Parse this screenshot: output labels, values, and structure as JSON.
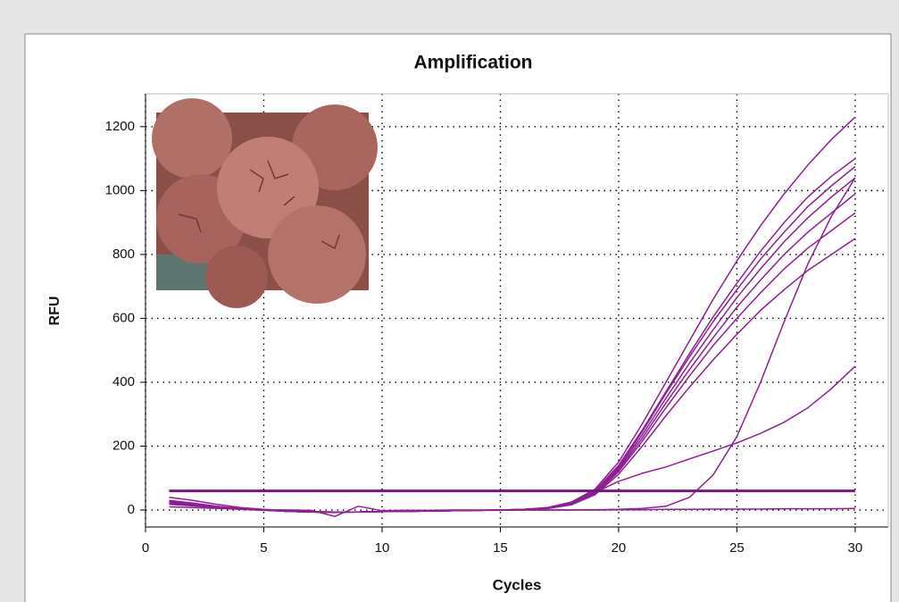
{
  "chart_data": {
    "type": "line",
    "title": "Amplification",
    "x_label": "Cycles",
    "y_label": "RFU",
    "x": [
      1,
      2,
      3,
      4,
      5,
      6,
      7,
      8,
      9,
      10,
      11,
      12,
      13,
      14,
      15,
      16,
      17,
      18,
      19,
      20,
      21,
      22,
      23,
      24,
      25,
      26,
      27,
      28,
      29,
      30
    ],
    "xlim": [
      0,
      31.4
    ],
    "ylim": [
      -53,
      1303
    ],
    "xticks": [
      0,
      5,
      10,
      15,
      20,
      25,
      30
    ],
    "yticks": [
      0,
      200,
      400,
      600,
      800,
      1000,
      1200
    ],
    "grid": true,
    "series": [
      {
        "color": "#8e1f94",
        "line_width": 1.5,
        "values": [
          25,
          18,
          10,
          4,
          0,
          -4,
          -6,
          -7,
          -6,
          -5,
          -4,
          -3,
          -2,
          -1,
          0,
          2,
          8,
          25,
          65,
          150,
          270,
          400,
          530,
          660,
          780,
          890,
          990,
          1080,
          1160,
          1230
        ]
      },
      {
        "color": "#8e1f94",
        "line_width": 1.5,
        "values": [
          30,
          22,
          12,
          5,
          1,
          -3,
          -5,
          -6,
          -6,
          -5,
          -4,
          -3,
          -2,
          -1,
          0,
          2,
          7,
          22,
          60,
          140,
          250,
          370,
          490,
          605,
          710,
          810,
          900,
          980,
          1045,
          1100
        ]
      },
      {
        "color": "#8e1f94",
        "line_width": 1.5,
        "values": [
          22,
          16,
          9,
          3,
          0,
          -4,
          -6,
          -7,
          -6,
          -5,
          -4,
          -3,
          -2,
          -1,
          0,
          2,
          6,
          20,
          58,
          135,
          245,
          365,
          480,
          590,
          690,
          785,
          870,
          950,
          1015,
          1075
        ]
      },
      {
        "color": "#8e1f94",
        "line_width": 1.5,
        "values": [
          40,
          30,
          18,
          8,
          2,
          -3,
          -5,
          -6,
          -6,
          -5,
          -4,
          -3,
          -2,
          -1,
          0,
          2,
          6,
          20,
          55,
          130,
          235,
          350,
          460,
          565,
          665,
          755,
          840,
          915,
          980,
          1040
        ]
      },
      {
        "color": "#8e1f94",
        "line_width": 1.5,
        "values": [
          20,
          14,
          8,
          3,
          0,
          -4,
          -6,
          -7,
          -6,
          -5,
          -4,
          -3,
          -2,
          -1,
          0,
          1,
          5,
          18,
          52,
          125,
          225,
          335,
          440,
          540,
          635,
          720,
          800,
          870,
          930,
          990
        ]
      },
      {
        "color": "#8e1f94",
        "line_width": 1.5,
        "values": [
          28,
          20,
          11,
          4,
          0,
          -4,
          -6,
          -7,
          -6,
          -5,
          -4,
          -3,
          -2,
          -1,
          0,
          1,
          5,
          17,
          50,
          120,
          215,
          320,
          420,
          515,
          600,
          680,
          755,
          820,
          875,
          930
        ]
      },
      {
        "color": "#8e1f94",
        "line_width": 1.5,
        "values": [
          18,
          13,
          7,
          2,
          -1,
          -4,
          -6,
          -7,
          -6,
          -5,
          -4,
          -3,
          -2,
          -1,
          0,
          1,
          5,
          16,
          48,
          112,
          200,
          295,
          385,
          470,
          550,
          625,
          690,
          750,
          800,
          850
        ]
      },
      {
        "color": "#8e1f94",
        "line_width": 1.5,
        "values": [
          24,
          17,
          9,
          3,
          0,
          -4,
          -6,
          -7,
          -6,
          -5,
          -4,
          -3,
          -2,
          -1,
          -1,
          0,
          0,
          0,
          1,
          2,
          5,
          12,
          40,
          110,
          230,
          400,
          590,
          770,
          920,
          1040
        ]
      },
      {
        "color": "#8e1f94",
        "line_width": 1.5,
        "values": [
          26,
          19,
          10,
          4,
          0,
          -4,
          -6,
          -7,
          -6,
          -5,
          -4,
          -3,
          -2,
          -1,
          0,
          1,
          5,
          20,
          55,
          90,
          115,
          135,
          160,
          185,
          210,
          240,
          275,
          320,
          380,
          450
        ]
      },
      {
        "color": "#8e1f94",
        "line_width": 1.5,
        "values": [
          10,
          8,
          5,
          3,
          1,
          0,
          -1,
          -20,
          12,
          -2,
          -1,
          -1,
          0,
          0,
          0,
          0,
          0,
          0,
          0,
          1,
          1,
          2,
          2,
          3,
          3,
          3,
          4,
          4,
          4,
          5
        ]
      },
      {
        "color": "#7a1482",
        "line_width": 3,
        "values": [
          60,
          60,
          60,
          60,
          60,
          60,
          60,
          60,
          60,
          60,
          60,
          60,
          60,
          60,
          60,
          60,
          60,
          60,
          60,
          60,
          60,
          60,
          60,
          60,
          60,
          60,
          60,
          60,
          60,
          60
        ]
      }
    ]
  }
}
